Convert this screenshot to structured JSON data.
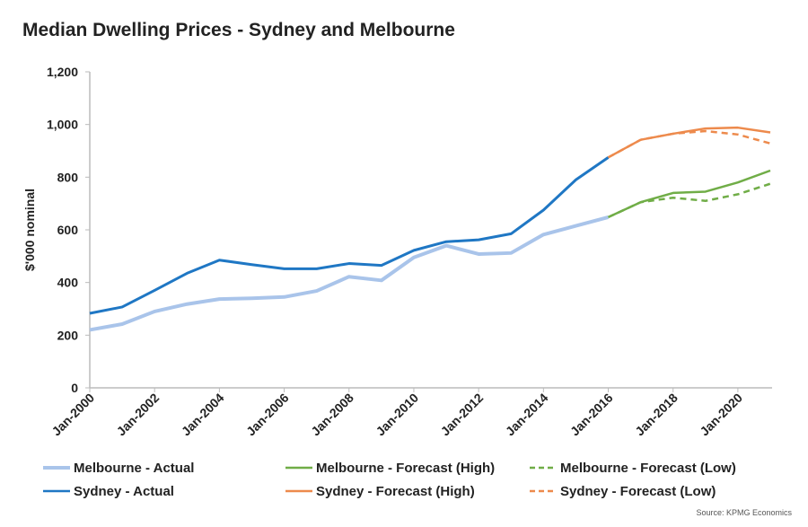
{
  "chart_data": {
    "type": "line",
    "title": "Median Dwelling Prices - Sydney and Melbourne",
    "ylabel": "$'000 nominal",
    "xlabel": "",
    "ylim": [
      0,
      1200
    ],
    "yticks": [
      "0",
      "200",
      "400",
      "600",
      "800",
      "1,000",
      "1,200"
    ],
    "xlim": [
      2000,
      2021
    ],
    "xticks": [
      "Jan-2000",
      "Jan-2002",
      "Jan-2004",
      "Jan-2006",
      "Jan-2008",
      "Jan-2010",
      "Jan-2012",
      "Jan-2014",
      "Jan-2016",
      "Jan-2018",
      "Jan-2020"
    ],
    "grid": false,
    "legend_position": "bottom",
    "source": "Source: KPMG Economics",
    "series": [
      {
        "name": "Melbourne - Actual",
        "color": "#a9c4ea",
        "dash": false,
        "x": [
          2000,
          2001,
          2002,
          2003,
          2004,
          2005,
          2006,
          2007,
          2008,
          2009,
          2010,
          2011,
          2012,
          2013,
          2014,
          2015,
          2016
        ],
        "values": [
          220,
          242,
          290,
          318,
          337,
          340,
          345,
          368,
          422,
          408,
          495,
          540,
          508,
          512,
          582,
          615,
          648
        ]
      },
      {
        "name": "Melbourne - Forecast (High)",
        "color": "#70ad47",
        "dash": false,
        "x": [
          2016,
          2017,
          2018,
          2019,
          2020,
          2021
        ],
        "values": [
          648,
          705,
          740,
          745,
          780,
          825
        ]
      },
      {
        "name": "Melbourne - Forecast (Low)",
        "color": "#70ad47",
        "dash": true,
        "x": [
          2016,
          2017,
          2018,
          2019,
          2020,
          2021
        ],
        "values": [
          648,
          705,
          722,
          710,
          735,
          775
        ]
      },
      {
        "name": "Sydney - Actual",
        "color": "#1f77c4",
        "dash": false,
        "x": [
          2000,
          2001,
          2002,
          2003,
          2004,
          2005,
          2006,
          2007,
          2008,
          2009,
          2010,
          2011,
          2012,
          2013,
          2014,
          2015,
          2016
        ],
        "values": [
          283,
          307,
          370,
          435,
          485,
          468,
          452,
          452,
          472,
          465,
          522,
          555,
          562,
          585,
          675,
          790,
          875
        ]
      },
      {
        "name": "Sydney - Forecast (High)",
        "color": "#ed8a4c",
        "dash": false,
        "x": [
          2016,
          2017,
          2018,
          2019,
          2020,
          2021
        ],
        "values": [
          875,
          942,
          965,
          985,
          988,
          970
        ]
      },
      {
        "name": "Sydney - Forecast (Low)",
        "color": "#ed8a4c",
        "dash": true,
        "x": [
          2016,
          2017,
          2018,
          2019,
          2020,
          2021
        ],
        "values": [
          875,
          942,
          965,
          975,
          962,
          928
        ]
      }
    ]
  }
}
